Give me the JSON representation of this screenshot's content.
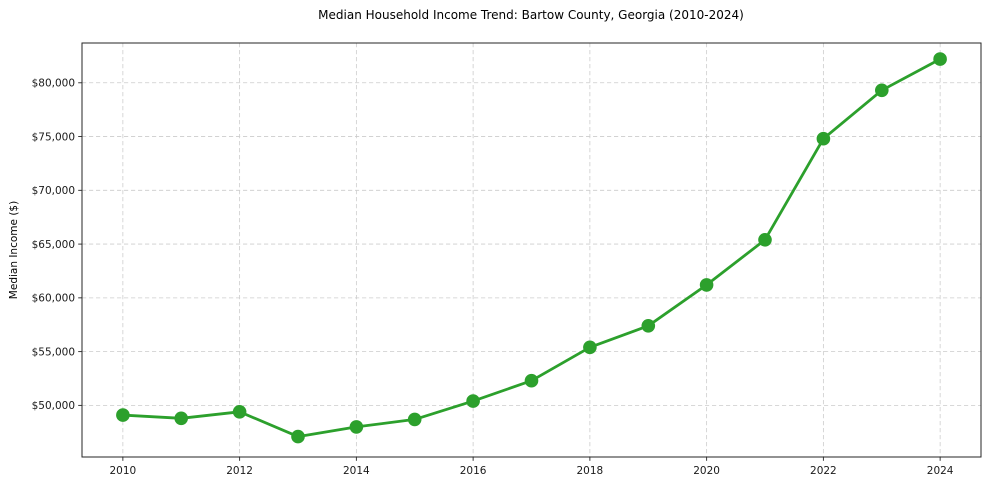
{
  "page": {
    "background_color": "#ffffff"
  },
  "chart_data": {
    "type": "line",
    "title": "Median Household Income Trend: Bartow County, Georgia (2010-2024)",
    "xlabel": "",
    "ylabel": "Median Income ($)",
    "series": [
      {
        "name": "Median Household Income",
        "color": "#2ca02c",
        "marker": "circle"
      }
    ],
    "x": [
      2010,
      2011,
      2012,
      2013,
      2014,
      2015,
      2016,
      2017,
      2018,
      2019,
      2020,
      2021,
      2022,
      2023,
      2024
    ],
    "values": [
      49100,
      48800,
      49400,
      47100,
      48000,
      48700,
      50400,
      52300,
      55400,
      57400,
      61200,
      65400,
      74800,
      79300,
      82200
    ],
    "xlim": [
      2009.3,
      2024.7
    ],
    "ylim": [
      45200,
      83700
    ],
    "xticks": [
      2010,
      2012,
      2014,
      2016,
      2018,
      2020,
      2022,
      2024
    ],
    "xtick_labels": [
      "2010",
      "2012",
      "2014",
      "2016",
      "2018",
      "2020",
      "2022",
      "2024"
    ],
    "yticks": [
      50000,
      55000,
      60000,
      65000,
      70000,
      75000,
      80000
    ],
    "ytick_labels": [
      "$50,000",
      "$55,000",
      "$60,000",
      "$65,000",
      "$70,000",
      "$75,000",
      "$80,000"
    ],
    "grid": true,
    "grid_style": "dashed",
    "grid_color": "#cccccc",
    "axis_color": "#262626",
    "tick_label_color": "#1a1a1a",
    "line_color": "#2ca02c",
    "marker_color": "#2ca02c",
    "legend": "none"
  }
}
